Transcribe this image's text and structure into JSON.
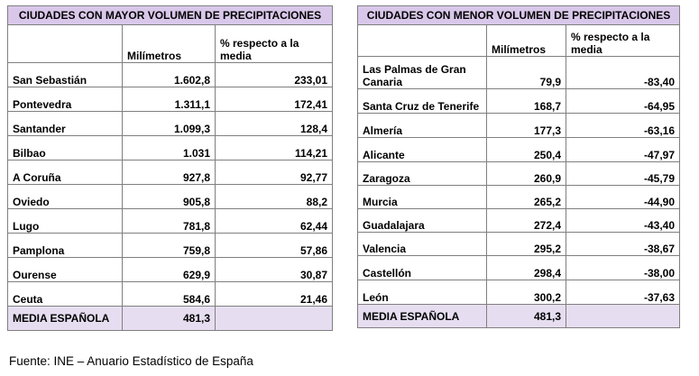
{
  "left_table": {
    "title": "CIUDADES CON MAYOR VOLUMEN DE PRECIPITACIONES",
    "col_mm": "Milímetros",
    "col_pct": "% respecto a la media",
    "rows": [
      {
        "city": "San Sebastián",
        "mm": "1.602,8",
        "pct": "233,01"
      },
      {
        "city": "Pontevedra",
        "mm": "1.311,1",
        "pct": "172,41"
      },
      {
        "city": "Santander",
        "mm": "1.099,3",
        "pct": "128,4"
      },
      {
        "city": "Bilbao",
        "mm": "1.031",
        "pct": "114,21"
      },
      {
        "city": "A Coruña",
        "mm": "927,8",
        "pct": "92,77"
      },
      {
        "city": "Oviedo",
        "mm": "905,8",
        "pct": "88,2"
      },
      {
        "city": "Lugo",
        "mm": "781,8",
        "pct": "62,44"
      },
      {
        "city": "Pamplona",
        "mm": "759,8",
        "pct": "57,86"
      },
      {
        "city": "Ourense",
        "mm": "629,9",
        "pct": "30,87"
      },
      {
        "city": "Ceuta",
        "mm": "584,6",
        "pct": "21,46"
      }
    ],
    "media_label": "MEDIA ESPAÑOLA",
    "media_value": "481,3"
  },
  "right_table": {
    "title": "CIUDADES CON MENOR VOLUMEN DE PRECIPITACIONES",
    "col_mm": "Milímetros",
    "col_pct": "% respecto a la media",
    "rows": [
      {
        "city": "Las Palmas de Gran Canaria",
        "mm": "79,9",
        "pct": "-83,40"
      },
      {
        "city": "Santa Cruz de Tenerife",
        "mm": "168,7",
        "pct": "-64,95"
      },
      {
        "city": "Almería",
        "mm": "177,3",
        "pct": "-63,16"
      },
      {
        "city": "Alicante",
        "mm": "250,4",
        "pct": "-47,97"
      },
      {
        "city": "Zaragoza",
        "mm": "260,9",
        "pct": "-45,79"
      },
      {
        "city": "Murcia",
        "mm": "265,2",
        "pct": "-44,90"
      },
      {
        "city": "Guadalajara",
        "mm": "272,4",
        "pct": "-43,40"
      },
      {
        "city": "Valencia",
        "mm": "295,2",
        "pct": "-38,67"
      },
      {
        "city": "Castellón",
        "mm": "298,4",
        "pct": "-38,00"
      },
      {
        "city": "León",
        "mm": "300,2",
        "pct": "-37,63"
      }
    ],
    "media_label": "MEDIA ESPAÑOLA",
    "media_value": "481,3"
  },
  "source": "Fuente: INE – Anuario Estadístico de España"
}
